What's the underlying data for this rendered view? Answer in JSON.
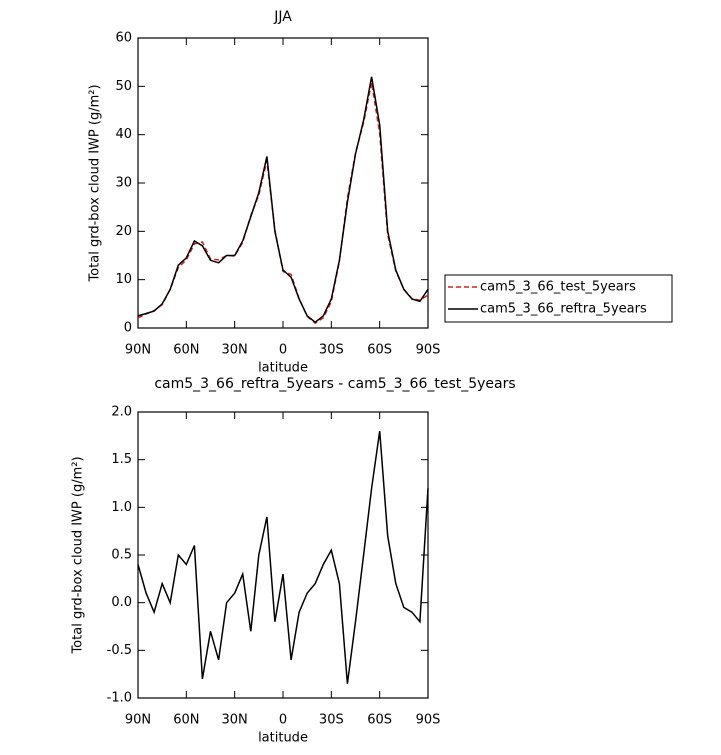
{
  "chart_data": [
    {
      "type": "line",
      "title": "JJA",
      "xlabel": "latitude",
      "ylabel": "Total grd-box cloud IWP (g/m²)",
      "x": [
        90,
        85,
        80,
        75,
        70,
        65,
        60,
        55,
        50,
        45,
        40,
        35,
        30,
        25,
        20,
        15,
        10,
        5,
        0,
        -5,
        -10,
        -15,
        -20,
        -25,
        -30,
        -35,
        -40,
        -45,
        -50,
        -55,
        -60,
        -65,
        -70,
        -75,
        -80,
        -85,
        -90
      ],
      "xlim": [
        90,
        -90
      ],
      "xticks": [
        {
          "value": 90,
          "label": "90N"
        },
        {
          "value": 60,
          "label": "60N"
        },
        {
          "value": 30,
          "label": "30N"
        },
        0,
        {
          "value": -30,
          "label": "30S"
        },
        {
          "value": -60,
          "label": "60S"
        },
        {
          "value": -90,
          "label": "90S"
        }
      ],
      "ylim": [
        0,
        60
      ],
      "yticks": [
        0,
        10,
        20,
        30,
        40,
        50,
        60
      ],
      "legend": "outside right",
      "series": [
        {
          "name": "cam5_3_66_test_5years",
          "color": "#d62020",
          "linestyle": "dashed",
          "values": [
            2.1,
            2.9,
            3.6,
            4.8,
            8,
            12.5,
            14.1,
            17.4,
            17.8,
            14.3,
            14.1,
            15,
            14.9,
            17.7,
            23.3,
            27.5,
            34.6,
            20.2,
            11.7,
            11.1,
            6.1,
            2.4,
            1.0,
            2.1,
            5.45,
            13.8,
            26.85,
            36.2,
            42.5,
            50.8,
            40.2,
            19.3,
            11.8,
            8.05,
            6.1,
            5.7,
            6.8
          ]
        },
        {
          "name": "cam5_3_66_reftra_5years",
          "color": "#000000",
          "linestyle": "solid",
          "values": [
            2.5,
            3,
            3.5,
            5,
            8,
            13,
            14.5,
            18,
            17,
            14,
            13.5,
            15,
            15,
            18,
            23,
            28,
            35.5,
            20,
            12,
            10.5,
            6,
            2.5,
            1.2,
            2.5,
            6,
            14,
            26,
            36,
            43,
            52,
            42,
            20,
            12,
            8,
            6,
            5.5,
            8
          ]
        }
      ]
    },
    {
      "type": "line",
      "title": "cam5_3_66_reftra_5years - cam5_3_66_test_5years",
      "xlabel": "latitude",
      "ylabel": "Total grd-box cloud IWP (g/m²)",
      "x": [
        90,
        85,
        80,
        75,
        70,
        65,
        60,
        55,
        50,
        45,
        40,
        35,
        30,
        25,
        20,
        15,
        10,
        5,
        0,
        -5,
        -10,
        -15,
        -20,
        -25,
        -30,
        -35,
        -40,
        -45,
        -50,
        -55,
        -60,
        -65,
        -70,
        -75,
        -80,
        -85,
        -90
      ],
      "xlim": [
        90,
        -90
      ],
      "xticks": [
        {
          "value": 90,
          "label": "90N"
        },
        {
          "value": 60,
          "label": "60N"
        },
        {
          "value": 30,
          "label": "30N"
        },
        0,
        {
          "value": -30,
          "label": "30S"
        },
        {
          "value": -60,
          "label": "60S"
        },
        {
          "value": -90,
          "label": "90S"
        }
      ],
      "ylim": [
        -1,
        2
      ],
      "yticks": [
        {
          "value": -1,
          "label": "-1.0"
        },
        -0.5,
        {
          "value": 0,
          "label": "0.0"
        },
        0.5,
        {
          "value": 1,
          "label": "1.0"
        },
        1.5,
        {
          "value": 2,
          "label": "2.0"
        }
      ],
      "series": [
        {
          "color": "#000000",
          "linestyle": "solid",
          "values": [
            0.4,
            0.1,
            -0.1,
            0.2,
            0.0,
            0.5,
            0.4,
            0.6,
            -0.8,
            -0.3,
            -0.6,
            0.0,
            0.1,
            0.3,
            -0.3,
            0.5,
            0.9,
            -0.2,
            0.3,
            -0.6,
            -0.1,
            0.1,
            0.2,
            0.4,
            0.55,
            0.2,
            -0.85,
            -0.2,
            0.5,
            1.2,
            1.8,
            0.7,
            0.2,
            -0.05,
            -0.1,
            -0.2,
            1.2
          ]
        }
      ]
    }
  ]
}
